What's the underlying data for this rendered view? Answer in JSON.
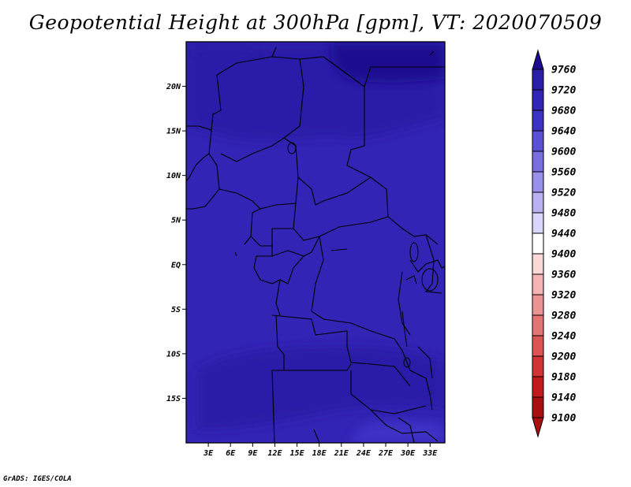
{
  "title": "Geopotential Height at 300hPa [gpm], VT: 2020070509",
  "credit": "GrADS: IGES/COLA",
  "map": {
    "lon_range": [
      0,
      35
    ],
    "lat_range": [
      -20,
      25
    ],
    "lon_ticks": [
      "3E",
      "6E",
      "9E",
      "12E",
      "15E",
      "18E",
      "21E",
      "24E",
      "27E",
      "30E",
      "33E"
    ],
    "lat_ticks": [
      "20N",
      "15N",
      "10N",
      "5N",
      "EQ",
      "5S",
      "10S",
      "15S"
    ],
    "base_color": "#3224b4"
  },
  "colorbar": {
    "levels": [
      "9760",
      "9720",
      "9680",
      "9640",
      "9600",
      "9560",
      "9520",
      "9480",
      "9440",
      "9400",
      "9360",
      "9320",
      "9280",
      "9240",
      "9200",
      "9180",
      "9140",
      "9100"
    ],
    "colors": [
      "#1c0a90",
      "#2a1ea8",
      "#3224b4",
      "#3c32c4",
      "#5a50d4",
      "#786ee0",
      "#9890ea",
      "#b8b2f2",
      "#d8d6fa",
      "#ffffff",
      "#fad8d8",
      "#f4b4b4",
      "#ec9494",
      "#e47474",
      "#dc5454",
      "#d03434",
      "#c01c1c",
      "#a81010"
    ]
  }
}
